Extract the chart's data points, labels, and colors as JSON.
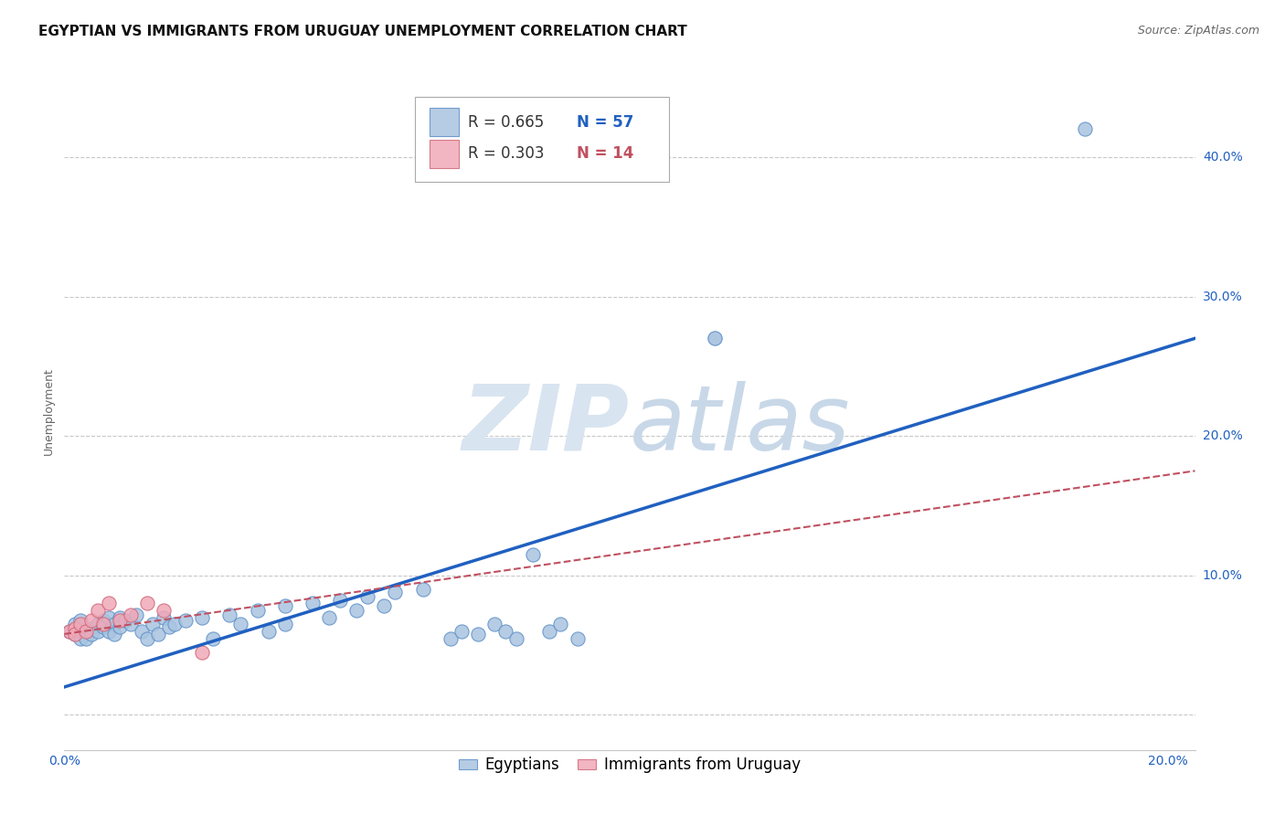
{
  "title": "EGYPTIAN VS IMMIGRANTS FROM URUGUAY UNEMPLOYMENT CORRELATION CHART",
  "source": "Source: ZipAtlas.com",
  "ylabel": "Unemployment",
  "xlim": [
    0.0,
    0.205
  ],
  "ylim": [
    -0.025,
    0.46
  ],
  "yticks": [
    0.0,
    0.1,
    0.2,
    0.3,
    0.4
  ],
  "ytick_labels": [
    "",
    "10.0%",
    "20.0%",
    "30.0%",
    "40.0%"
  ],
  "xticks": [
    0.0,
    0.05,
    0.1,
    0.15,
    0.2
  ],
  "xtick_labels": [
    "0.0%",
    "",
    "",
    "",
    "20.0%"
  ],
  "background_color": "#ffffff",
  "grid_color": "#c8c8c8",
  "watermark_zip": "ZIP",
  "watermark_atlas": "atlas",
  "blue_color": "#a8c4e0",
  "pink_color": "#f0a8b8",
  "blue_edge_color": "#6090c8",
  "pink_edge_color": "#d06878",
  "blue_line_color": "#2060c0",
  "pink_line_color": "#c05060",
  "blue_scatter": [
    [
      0.001,
      0.06
    ],
    [
      0.002,
      0.058
    ],
    [
      0.002,
      0.065
    ],
    [
      0.003,
      0.055
    ],
    [
      0.003,
      0.068
    ],
    [
      0.004,
      0.06
    ],
    [
      0.004,
      0.055
    ],
    [
      0.005,
      0.062
    ],
    [
      0.005,
      0.058
    ],
    [
      0.006,
      0.065
    ],
    [
      0.006,
      0.06
    ],
    [
      0.007,
      0.068
    ],
    [
      0.007,
      0.063
    ],
    [
      0.008,
      0.06
    ],
    [
      0.008,
      0.07
    ],
    [
      0.009,
      0.065
    ],
    [
      0.009,
      0.058
    ],
    [
      0.01,
      0.07
    ],
    [
      0.01,
      0.063
    ],
    [
      0.011,
      0.068
    ],
    [
      0.012,
      0.065
    ],
    [
      0.013,
      0.072
    ],
    [
      0.014,
      0.06
    ],
    [
      0.015,
      0.055
    ],
    [
      0.016,
      0.065
    ],
    [
      0.017,
      0.058
    ],
    [
      0.018,
      0.07
    ],
    [
      0.019,
      0.063
    ],
    [
      0.02,
      0.065
    ],
    [
      0.022,
      0.068
    ],
    [
      0.025,
      0.07
    ],
    [
      0.027,
      0.055
    ],
    [
      0.03,
      0.072
    ],
    [
      0.032,
      0.065
    ],
    [
      0.035,
      0.075
    ],
    [
      0.037,
      0.06
    ],
    [
      0.04,
      0.078
    ],
    [
      0.04,
      0.065
    ],
    [
      0.045,
      0.08
    ],
    [
      0.048,
      0.07
    ],
    [
      0.05,
      0.082
    ],
    [
      0.053,
      0.075
    ],
    [
      0.055,
      0.085
    ],
    [
      0.058,
      0.078
    ],
    [
      0.06,
      0.088
    ],
    [
      0.065,
      0.09
    ],
    [
      0.07,
      0.055
    ],
    [
      0.072,
      0.06
    ],
    [
      0.075,
      0.058
    ],
    [
      0.078,
      0.065
    ],
    [
      0.08,
      0.06
    ],
    [
      0.082,
      0.055
    ],
    [
      0.085,
      0.115
    ],
    [
      0.088,
      0.06
    ],
    [
      0.09,
      0.065
    ],
    [
      0.093,
      0.055
    ],
    [
      0.118,
      0.27
    ]
  ],
  "blue_outlier_high": [
    0.185,
    0.42
  ],
  "blue_outlier_mid": [
    0.118,
    0.27
  ],
  "pink_scatter": [
    [
      0.001,
      0.06
    ],
    [
      0.002,
      0.062
    ],
    [
      0.002,
      0.058
    ],
    [
      0.003,
      0.065
    ],
    [
      0.004,
      0.06
    ],
    [
      0.005,
      0.068
    ],
    [
      0.006,
      0.075
    ],
    [
      0.007,
      0.065
    ],
    [
      0.008,
      0.08
    ],
    [
      0.01,
      0.068
    ],
    [
      0.012,
      0.072
    ],
    [
      0.015,
      0.08
    ],
    [
      0.018,
      0.075
    ],
    [
      0.025,
      0.045
    ]
  ],
  "blue_trend_x": [
    0.0,
    0.205
  ],
  "blue_trend_y": [
    0.02,
    0.27
  ],
  "pink_trend_x": [
    0.0,
    0.205
  ],
  "pink_trend_y": [
    0.058,
    0.175
  ],
  "title_fontsize": 11,
  "source_fontsize": 9,
  "axis_fontsize": 9,
  "tick_fontsize": 10,
  "legend_fontsize": 12,
  "marker_size": 120
}
